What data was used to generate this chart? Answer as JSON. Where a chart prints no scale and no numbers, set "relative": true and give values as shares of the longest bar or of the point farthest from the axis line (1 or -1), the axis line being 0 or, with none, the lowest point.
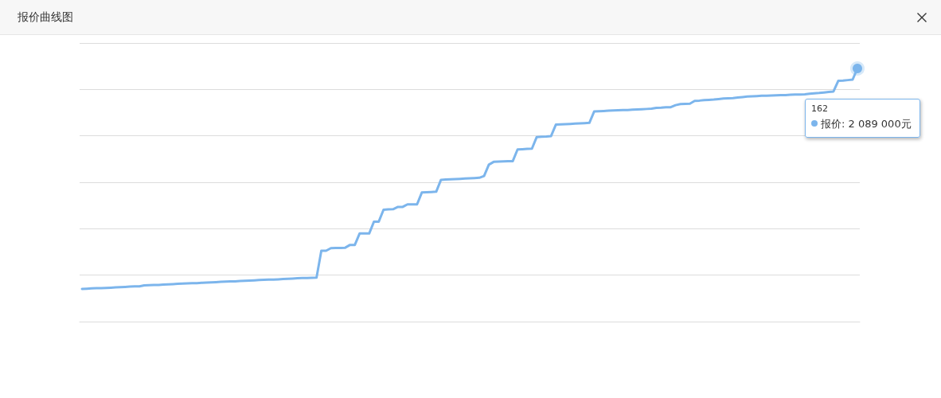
{
  "chart_data": {
    "type": "line",
    "title": "报价曲线图",
    "categories": [
      null,
      null,
      null,
      null,
      null,
      null,
      null,
      null,
      null,
      null,
      null,
      null,
      null,
      null,
      null,
      null,
      null,
      null,
      null,
      null,
      null,
      null,
      null,
      null,
      null,
      null,
      null,
      null,
      null,
      null,
      null,
      null,
      null,
      null,
      null,
      null,
      null,
      null,
      null,
      null,
      null,
      null,
      null,
      null,
      null,
      null,
      null,
      null,
      null,
      null,
      null,
      null,
      null,
      null,
      null,
      null,
      null,
      null,
      null,
      null,
      null,
      null,
      null,
      null,
      null,
      null,
      null,
      null,
      null,
      null,
      null,
      null,
      null,
      null,
      null,
      null,
      null,
      null,
      null,
      null,
      null,
      null,
      null,
      null,
      null,
      null,
      null,
      null,
      null,
      null,
      null,
      null,
      null,
      null,
      null,
      null,
      null,
      null,
      null,
      null,
      null,
      null,
      null,
      null,
      null,
      null,
      null,
      null,
      null,
      null,
      null,
      null,
      null,
      null,
      null,
      null,
      null,
      null,
      null,
      null,
      null,
      null,
      null,
      null,
      null,
      null,
      null,
      null,
      null,
      null,
      null,
      null,
      null,
      null,
      null,
      null,
      null,
      null,
      null,
      null,
      null,
      null,
      null,
      null,
      null,
      null,
      null,
      null,
      null,
      null,
      null,
      null,
      null,
      null,
      null,
      null,
      null,
      null,
      null,
      null,
      null,
      null,
      null
    ],
    "values": [
      0.129,
      0.13,
      0.131,
      0.132,
      0.132,
      0.133,
      0.134,
      0.135,
      0.136,
      0.137,
      0.138,
      0.139,
      0.139,
      0.143,
      0.144,
      0.145,
      0.145,
      0.146,
      0.147,
      0.148,
      0.149,
      0.15,
      0.151,
      0.152,
      0.152,
      0.153,
      0.154,
      0.155,
      0.156,
      0.157,
      0.158,
      0.159,
      0.159,
      0.16,
      0.161,
      0.162,
      0.163,
      0.164,
      0.165,
      0.166,
      0.166,
      0.167,
      0.168,
      0.169,
      0.17,
      0.171,
      0.172,
      0.172,
      0.173,
      0.174,
      0.28,
      0.28,
      0.29,
      0.291,
      0.291,
      0.292,
      0.303,
      0.303,
      0.348,
      0.348,
      0.348,
      0.395,
      0.395,
      0.442,
      0.443,
      0.444,
      0.453,
      0.453,
      0.463,
      0.463,
      0.463,
      0.51,
      0.511,
      0.512,
      0.513,
      0.56,
      0.561,
      0.562,
      0.563,
      0.564,
      0.565,
      0.566,
      0.567,
      0.568,
      0.575,
      0.62,
      0.631,
      0.632,
      0.633,
      0.634,
      0.634,
      0.68,
      0.681,
      0.682,
      0.683,
      0.729,
      0.73,
      0.731,
      0.733,
      0.778,
      0.779,
      0.78,
      0.781,
      0.782,
      0.783,
      0.784,
      0.785,
      0.83,
      0.831,
      0.832,
      0.833,
      0.834,
      0.835,
      0.836,
      0.836,
      0.837,
      0.838,
      0.839,
      0.84,
      0.841,
      0.844,
      0.845,
      0.847,
      0.847,
      0.855,
      0.859,
      0.86,
      0.861,
      0.872,
      0.873,
      0.875,
      0.876,
      0.877,
      0.879,
      0.881,
      0.882,
      0.883,
      0.885,
      0.887,
      0.889,
      0.89,
      0.891,
      0.892,
      0.892,
      0.893,
      0.894,
      0.895,
      0.895,
      0.896,
      0.897,
      0.897,
      0.898,
      0.9,
      0.902,
      0.903,
      0.905,
      0.907,
      0.909,
      0.951,
      0.952,
      0.954,
      0.956,
      1
    ],
    "color": "#7cb5ec",
    "relative": true,
    "grid": "y",
    "marker": "none",
    "line_style": "solid",
    "annotations": [
      "162",
      "报价: 2 089 000元"
    ]
  }
}
